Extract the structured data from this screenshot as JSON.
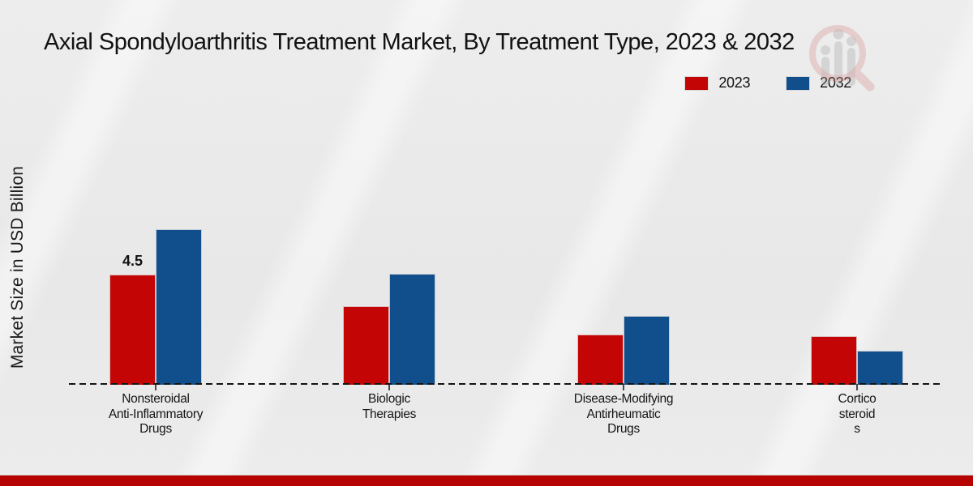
{
  "title": "Axial Spondyloarthritis Treatment Market, By Treatment Type, 2023 & 2032",
  "ylabel": "Market Size in USD Billion",
  "legend": {
    "items": [
      {
        "label": "2023",
        "color": "#c40505"
      },
      {
        "label": "2032",
        "color": "#114f8c"
      }
    ]
  },
  "watermark": {
    "icon": "magnifier-bar-chart-logo"
  },
  "footer": {
    "color": "#b50300"
  },
  "chart_data": {
    "type": "bar",
    "title": "Axial Spondyloarthritis Treatment Market, By Treatment Type, 2023 & 2032",
    "ylabel": "Market Size in USD Billion",
    "xlabel": "",
    "categories": [
      "Nonsteroidal Anti-Inflammatory Drugs",
      "Biologic Therapies",
      "Disease-Modifying Antirheumatic Drugs",
      "Corticosteroids"
    ],
    "category_label_lines": [
      [
        "Nonsteroidal",
        "Anti-Inflammatory",
        "Drugs"
      ],
      [
        "Biologic",
        "Therapies"
      ],
      [
        "Disease-Modifying",
        "Antirheumatic",
        "Drugs"
      ],
      [
        "Cortico",
        "steroid",
        "s"
      ]
    ],
    "series": [
      {
        "name": "2023",
        "color": "#c40505",
        "values": [
          4.5,
          3.2,
          2.05,
          2.0
        ]
      },
      {
        "name": "2032",
        "color": "#114f8c",
        "values": [
          6.35,
          4.55,
          2.8,
          1.4
        ]
      }
    ],
    "annotations": [
      {
        "text": "4.5",
        "series": "2023",
        "category_index": 0
      }
    ],
    "ylim": [
      0,
      7
    ],
    "grid": false,
    "legend_position": "upper right",
    "x_axis_style": "dashed"
  }
}
